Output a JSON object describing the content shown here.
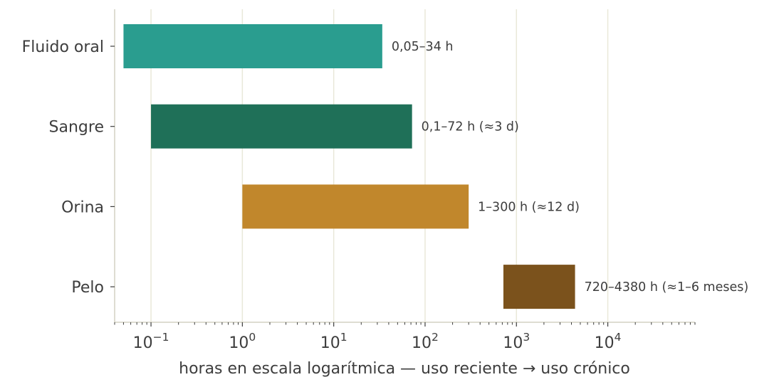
{
  "chart_data": {
    "type": "bar",
    "orientation": "horizontal",
    "x_scale": "log",
    "xlim": [
      0.04,
      90000
    ],
    "xlabel": "horas en escala logarítmica — uso reciente → uso crónico",
    "ylabel": "",
    "title": "",
    "grid": "vertical, major ticks only",
    "x_ticks": [
      {
        "value": 0.1,
        "base": "10",
        "exp": "−1"
      },
      {
        "value": 1,
        "base": "10",
        "exp": "0"
      },
      {
        "value": 10,
        "base": "10",
        "exp": "1"
      },
      {
        "value": 100,
        "base": "10",
        "exp": "2"
      },
      {
        "value": 1000,
        "base": "10",
        "exp": "3"
      },
      {
        "value": 10000,
        "base": "10",
        "exp": "4"
      }
    ],
    "bars": [
      {
        "category": "Fluido oral",
        "start": 0.05,
        "end": 34,
        "color": "#2a9d8f",
        "label": "0,05–34 h"
      },
      {
        "category": "Sangre",
        "start": 0.1,
        "end": 72,
        "color": "#1f7058",
        "label": "0,1–72 h (≈3 d)"
      },
      {
        "category": "Orina",
        "start": 1,
        "end": 300,
        "color": "#c1872c",
        "label": "1–300 h (≈12 d)"
      },
      {
        "category": "Pelo",
        "start": 720,
        "end": 4380,
        "color": "#7b521c",
        "label": "720–4380 h (≈1–6 meses)"
      }
    ]
  }
}
